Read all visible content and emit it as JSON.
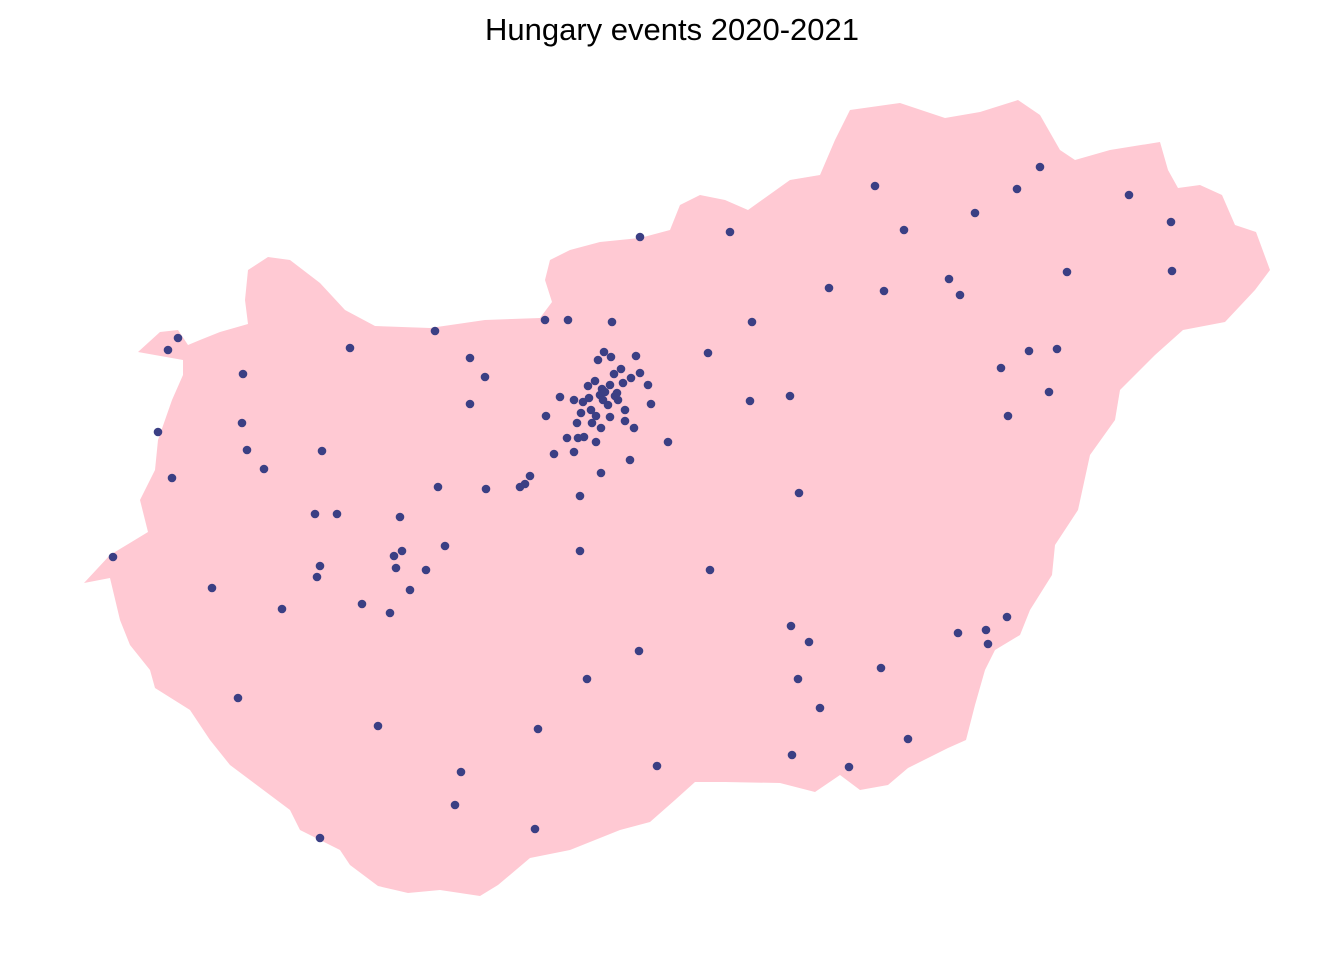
{
  "title": "Hungary events 2020-2021",
  "colors": {
    "country_fill": "#FFC9D3",
    "event_point": "#3B3F84",
    "background": "#FFFFFF"
  },
  "map": {
    "region": "Hungary",
    "event_count": 150
  }
}
